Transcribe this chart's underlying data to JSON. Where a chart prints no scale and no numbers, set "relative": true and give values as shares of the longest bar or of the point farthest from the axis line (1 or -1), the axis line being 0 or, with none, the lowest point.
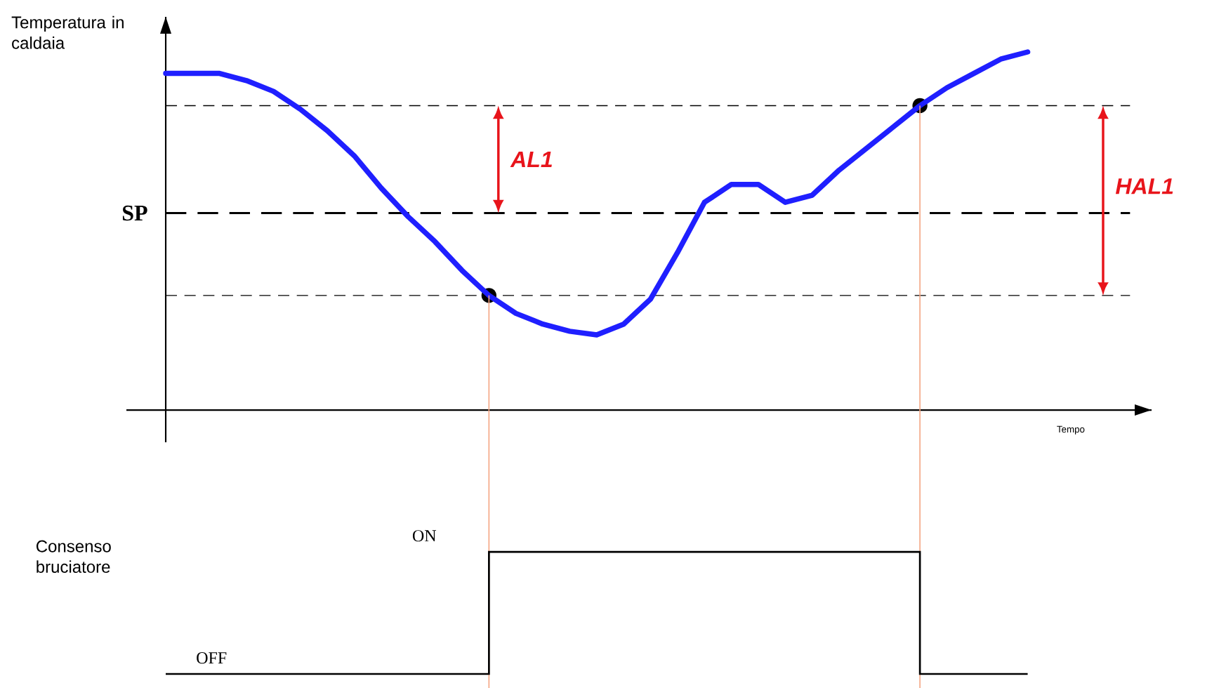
{
  "chart_data": [
    {
      "type": "line",
      "relative": true,
      "ylabel": "Temperatura in caldaia",
      "xlabel": "Tempo",
      "categories": [
        null,
        null,
        null,
        null,
        null,
        null,
        null,
        null,
        null,
        null,
        null,
        null,
        null,
        null,
        null,
        null,
        null,
        null,
        null,
        null,
        null,
        null,
        null,
        null,
        null,
        null,
        null,
        null,
        null,
        null,
        null,
        null,
        null
      ],
      "series": [
        {
          "color": "#1f1fff",
          "values": [
            0.94,
            0.94,
            0.94,
            0.92,
            0.89,
            0.84,
            0.78,
            0.71,
            0.62,
            0.54,
            0.47,
            0.39,
            0.32,
            0.27,
            0.24,
            0.22,
            0.21,
            0.24,
            0.31,
            0.44,
            0.58,
            0.63,
            0.63,
            0.58,
            0.6,
            0.67,
            0.73,
            0.79,
            0.85,
            0.9,
            0.94,
            0.98,
            1.0
          ]
        }
      ],
      "ref_lines": [
        {
          "axis": "y",
          "value": 0.85,
          "line_style": "dashed",
          "color": "#000000"
        },
        {
          "axis": "y",
          "value": 0.55,
          "label": "SP",
          "line_style": "dashed",
          "color": "#000000"
        },
        {
          "axis": "y",
          "value": 0.32,
          "line_style": "dashed",
          "color": "#000000"
        }
      ],
      "annotations": [
        "AL1",
        "HAL1"
      ]
    },
    {
      "type": "step",
      "ylabel": "Consenso bruciatore",
      "color": "#000000",
      "categories": [
        null,
        null,
        null,
        null,
        null,
        null,
        null,
        null,
        null,
        null,
        null,
        null,
        null,
        null,
        null,
        null,
        null,
        null,
        null,
        null,
        null,
        null,
        null,
        null,
        null,
        null,
        null,
        null,
        null,
        null,
        null,
        null,
        null
      ],
      "relative": true,
      "values": [
        0,
        0,
        0,
        0,
        0,
        0,
        0,
        0,
        0,
        0,
        0,
        0,
        1,
        1,
        1,
        1,
        1,
        1,
        1,
        1,
        1,
        1,
        1,
        1,
        1,
        1,
        1,
        1,
        0,
        0,
        0,
        0,
        0
      ],
      "annotations": [
        "ON",
        "OFF"
      ]
    }
  ]
}
